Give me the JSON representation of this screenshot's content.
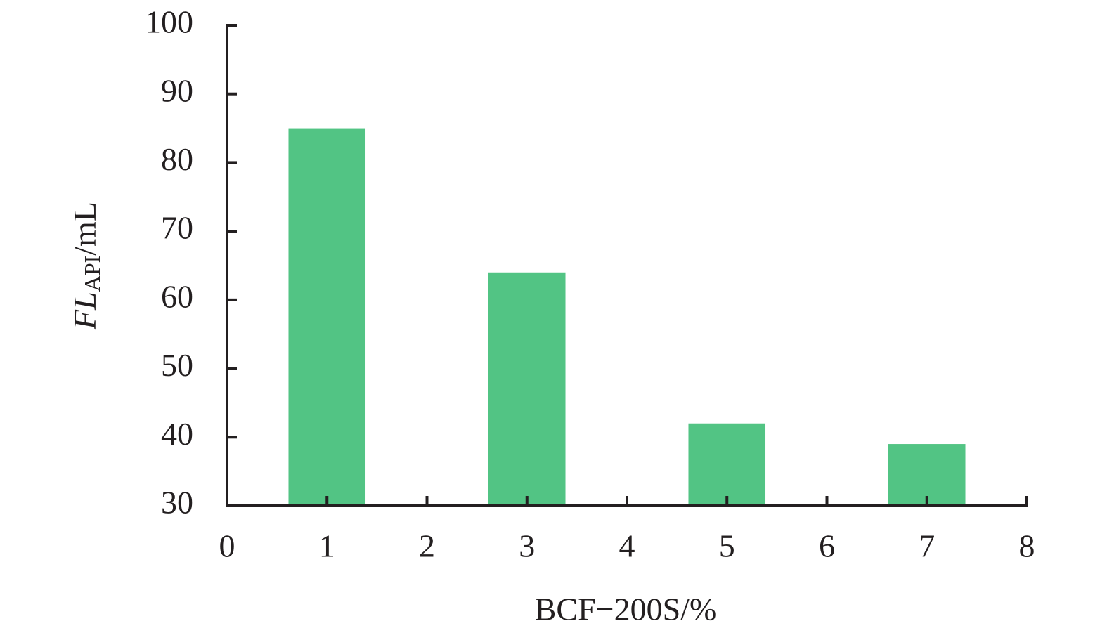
{
  "chart_data": {
    "type": "bar",
    "xlabel": "BCF−200S/%",
    "ylabel": {
      "main": "FL",
      "sub": "API",
      "unit": "/mL"
    },
    "x": [
      1,
      3,
      5,
      7
    ],
    "values": [
      85,
      64,
      42,
      39
    ],
    "color": "#52c484",
    "xlim": [
      0,
      8
    ],
    "xticks": [
      0,
      1,
      2,
      3,
      4,
      5,
      6,
      7,
      8
    ],
    "ylim": [
      30,
      100
    ],
    "yticks": [
      30,
      40,
      50,
      60,
      70,
      80,
      90,
      100
    ],
    "grid": false
  }
}
